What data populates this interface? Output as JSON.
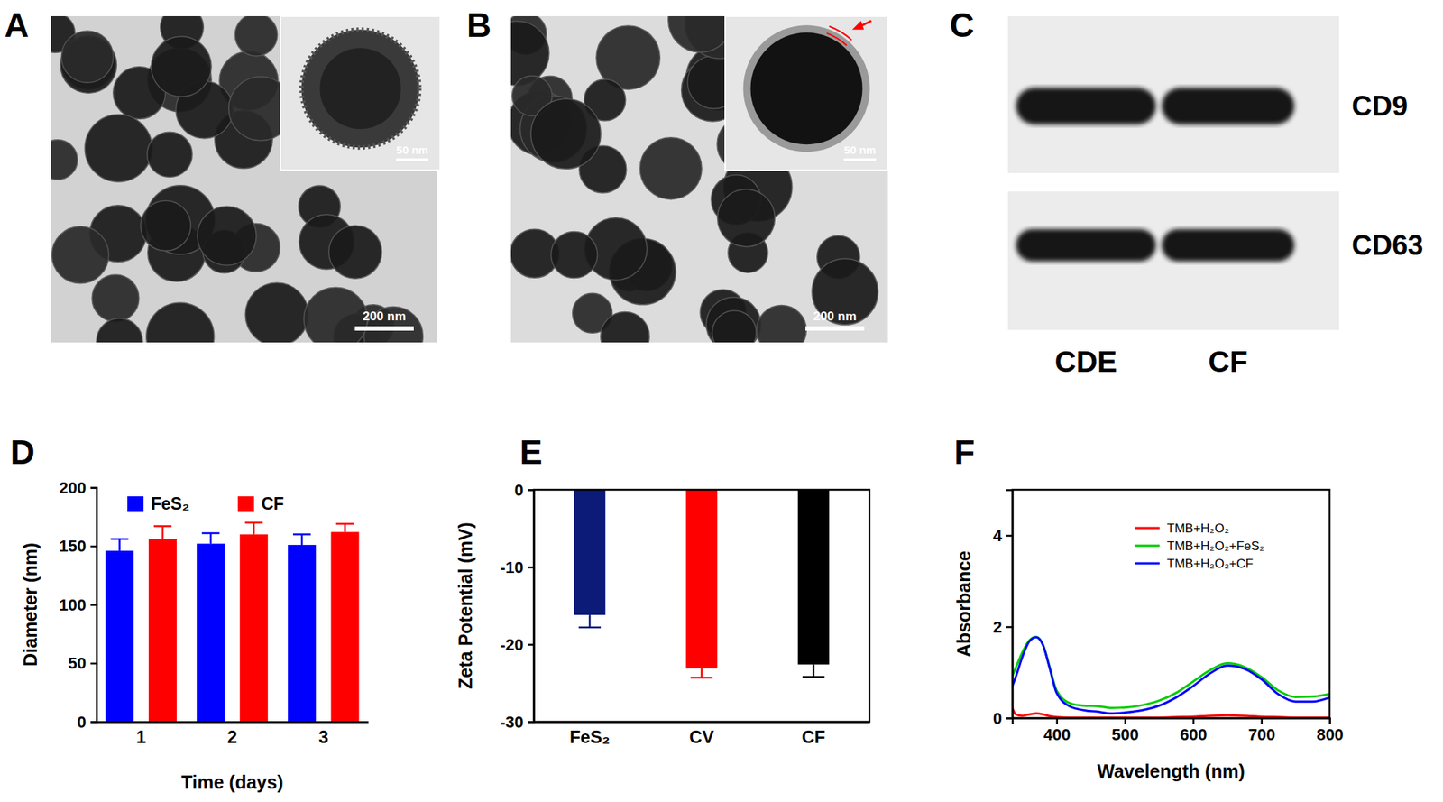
{
  "chart_data": [
    {
      "type": "bar",
      "title": "D",
      "categories": [
        "1",
        "2",
        "3"
      ],
      "x_label": "Time (days)",
      "y_label": "Diameter (nm)",
      "series": [
        {
          "name": "FeS₂",
          "color": "#0000ff",
          "values": [
            146,
            152,
            151
          ],
          "errors": [
            10,
            9,
            9
          ]
        },
        {
          "name": "CF",
          "color": "#ff0000",
          "values": [
            156,
            160,
            162
          ],
          "errors": [
            11,
            10,
            7
          ]
        }
      ],
      "ylim": [
        0,
        200
      ],
      "yticks": [
        0,
        50,
        100,
        150,
        200
      ],
      "legend": "top"
    },
    {
      "type": "bar",
      "title": "E",
      "categories": [
        "FeS₂",
        "CV",
        "CF"
      ],
      "y_label": "Zeta Potential (mV)",
      "values": [
        -16.2,
        -23.1,
        -22.6
      ],
      "errors": [
        1.6,
        1.2,
        1.6
      ],
      "colors": [
        "#0c1a78",
        "#ff0000",
        "#000000"
      ],
      "ylim": [
        -30,
        0
      ],
      "yticks": [
        -30,
        -20,
        -10,
        0
      ]
    },
    {
      "type": "line",
      "title": "F",
      "x_label": "Wavelength (nm)",
      "y_label": "Absorbance",
      "x": [
        335,
        340,
        350,
        360,
        370,
        380,
        390,
        400,
        420,
        440,
        460,
        480,
        500,
        525,
        550,
        575,
        600,
        625,
        650,
        675,
        700,
        725,
        750,
        775,
        800
      ],
      "series": [
        {
          "name": "TMB+H₂O₂",
          "color": "#ff0000",
          "values": [
            0.22,
            0.08,
            0.05,
            0.08,
            0.1,
            0.08,
            0.04,
            0.02,
            0.01,
            0.01,
            0.01,
            0.01,
            0.01,
            0.01,
            0.01,
            0.02,
            0.03,
            0.05,
            0.06,
            0.05,
            0.03,
            0.02,
            0.01,
            0.01,
            0.01
          ]
        },
        {
          "name": "TMB+H₂O₂+FeS₂",
          "color": "#00cc00",
          "values": [
            0.92,
            1.1,
            1.45,
            1.7,
            1.78,
            1.6,
            1.1,
            0.6,
            0.32,
            0.27,
            0.26,
            0.22,
            0.23,
            0.28,
            0.38,
            0.55,
            0.8,
            1.05,
            1.2,
            1.12,
            0.9,
            0.6,
            0.46,
            0.47,
            0.53
          ]
        },
        {
          "name": "TMB+H₂O₂+CF",
          "color": "#0000ff",
          "values": [
            0.7,
            0.9,
            1.35,
            1.68,
            1.77,
            1.6,
            1.08,
            0.55,
            0.25,
            0.17,
            0.14,
            0.1,
            0.12,
            0.17,
            0.27,
            0.45,
            0.7,
            0.98,
            1.15,
            1.08,
            0.85,
            0.52,
            0.36,
            0.36,
            0.45
          ]
        }
      ],
      "xlim": [
        335,
        800
      ],
      "xticks": [
        400,
        500,
        600,
        700,
        800
      ],
      "ylim": [
        0,
        5
      ],
      "yticks": [
        0,
        2,
        4
      ],
      "legend": "upper right"
    }
  ],
  "images": [
    {
      "label": "A",
      "scale_bar": "200 nm",
      "inset_scale_bar": "50 nm"
    },
    {
      "label": "B",
      "scale_bar": "200 nm",
      "inset_scale_bar": "50 nm"
    },
    {
      "label": "C",
      "rows": [
        "CD9",
        "CD63"
      ],
      "lanes": [
        "CDE",
        "CF"
      ]
    }
  ]
}
